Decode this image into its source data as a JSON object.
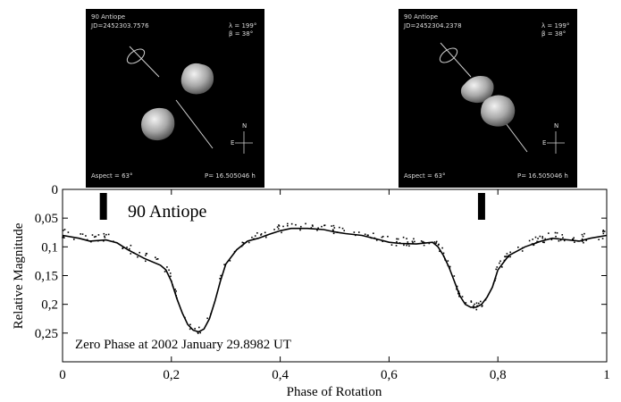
{
  "chart_data": {
    "type": "scatter",
    "title": "90 Antiope",
    "annotation": "Zero Phase at 2002 January 29.8982 UT",
    "xlabel": "Phase of Rotation",
    "ylabel": "Relative Magnitude",
    "xlim": [
      0,
      1
    ],
    "ylim": [
      0,
      0.3
    ],
    "y_inverted": true,
    "x_ticks": [
      0,
      0.2,
      0.4,
      0.6,
      0.8,
      1
    ],
    "x_tick_labels": [
      "0",
      "0,2",
      "0,4",
      "0,6",
      "0,8",
      "1"
    ],
    "y_ticks": [
      0,
      0.05,
      0.1,
      0.15,
      0.2,
      0.25
    ],
    "y_tick_labels": [
      "0",
      "0,05",
      "0,1",
      "0,15",
      "0,2",
      "0,25"
    ],
    "grid": false,
    "model_curve": {
      "x": [
        0,
        0.03,
        0.05,
        0.08,
        0.1,
        0.12,
        0.15,
        0.18,
        0.19,
        0.2,
        0.21,
        0.22,
        0.23,
        0.24,
        0.25,
        0.26,
        0.27,
        0.28,
        0.29,
        0.3,
        0.32,
        0.34,
        0.36,
        0.38,
        0.4,
        0.42,
        0.45,
        0.48,
        0.5,
        0.52,
        0.55,
        0.58,
        0.6,
        0.62,
        0.65,
        0.67,
        0.68,
        0.69,
        0.7,
        0.71,
        0.72,
        0.73,
        0.74,
        0.75,
        0.76,
        0.77,
        0.78,
        0.79,
        0.8,
        0.82,
        0.85,
        0.88,
        0.9,
        0.92,
        0.95,
        0.97,
        1
      ],
      "y": [
        0.08,
        0.085,
        0.09,
        0.088,
        0.093,
        0.105,
        0.12,
        0.132,
        0.14,
        0.16,
        0.19,
        0.215,
        0.235,
        0.245,
        0.248,
        0.243,
        0.225,
        0.195,
        0.16,
        0.13,
        0.105,
        0.09,
        0.085,
        0.078,
        0.072,
        0.068,
        0.068,
        0.07,
        0.074,
        0.077,
        0.08,
        0.087,
        0.092,
        0.094,
        0.095,
        0.093,
        0.092,
        0.1,
        0.115,
        0.135,
        0.16,
        0.185,
        0.2,
        0.205,
        0.205,
        0.2,
        0.188,
        0.17,
        0.14,
        0.115,
        0.1,
        0.09,
        0.085,
        0.087,
        0.09,
        0.085,
        0.08
      ]
    },
    "observations_description_free": true
  },
  "insets": [
    {
      "name": "90 Antiope",
      "jd": "JD=2452303.7576",
      "lambda": "λ = 199°",
      "beta": "β = 38°",
      "aspect": "Aspect = 63°",
      "period": "P= 16.505046 h",
      "north": "N",
      "east": "E",
      "marker_phase": 0.075
    },
    {
      "name": "90 Antiope",
      "jd": "JD=2452304.2378",
      "lambda": "λ = 199°",
      "beta": "β = 38°",
      "aspect": "Aspect = 63°",
      "period": "P= 16.505046 h",
      "north": "N",
      "east": "E",
      "marker_phase": 0.77
    }
  ]
}
